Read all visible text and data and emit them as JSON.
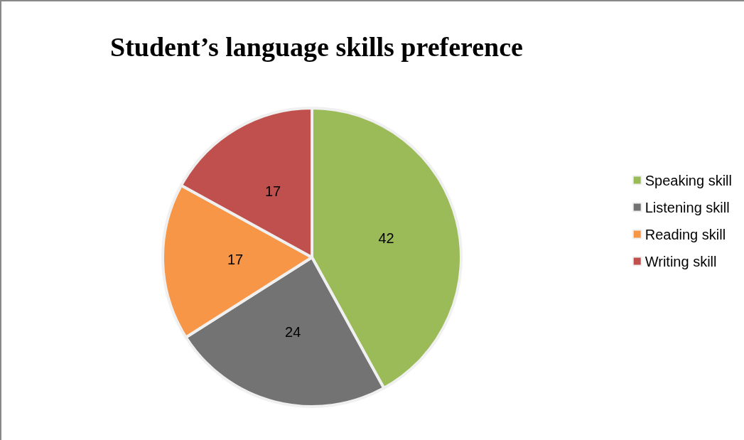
{
  "chart_data": {
    "type": "pie",
    "title": "Student’s language skills preference",
    "categories": [
      "Speaking skill",
      "Listening skill",
      "Reading skill",
      "Writing skill"
    ],
    "values": [
      42,
      24,
      17,
      17
    ],
    "colors": [
      "#9bbb59",
      "#737373",
      "#f79646",
      "#c0504d"
    ],
    "data_labels": true,
    "legend": "right"
  }
}
